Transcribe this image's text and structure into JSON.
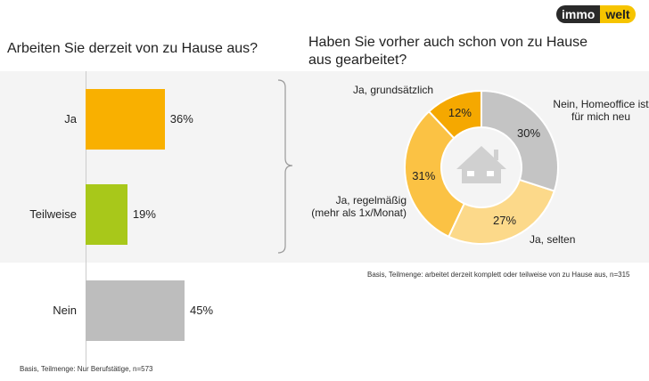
{
  "logo": {
    "part1": "immo",
    "part2": "welt"
  },
  "chart_data": [
    {
      "type": "bar",
      "title": "Arbeiten Sie derzeit von zu Hause aus?",
      "categories": [
        "Ja",
        "Teilweise",
        "Nein"
      ],
      "values": [
        36,
        19,
        45
      ],
      "labels": [
        "36%",
        "19%",
        "45%"
      ],
      "colors": [
        "#f9b000",
        "#a8c81a",
        "#bdbdbd"
      ],
      "xlim": [
        0,
        60
      ],
      "note": "Basis, Teilmenge: Nur Berufstätige, n=573"
    },
    {
      "type": "pie",
      "title": "Haben Sie vorher auch schon von zu Hause aus gearbeitet?",
      "categories": [
        "Nein, Homeoffice ist für mich neu",
        "Ja, selten",
        "Ja, regelmäßig (mehr als 1x/Monat)",
        "Ja, grundsätzlich"
      ],
      "values": [
        30,
        27,
        31,
        12
      ],
      "labels": [
        "30%",
        "27%",
        "31%",
        "12%"
      ],
      "colors": [
        "#c4c4c4",
        "#fcd98a",
        "#fbc244",
        "#f5a800"
      ],
      "note": "Basis, Teilmenge: arbeitet derzeit komplett oder teilweise von zu Hause aus, n=315"
    }
  ]
}
